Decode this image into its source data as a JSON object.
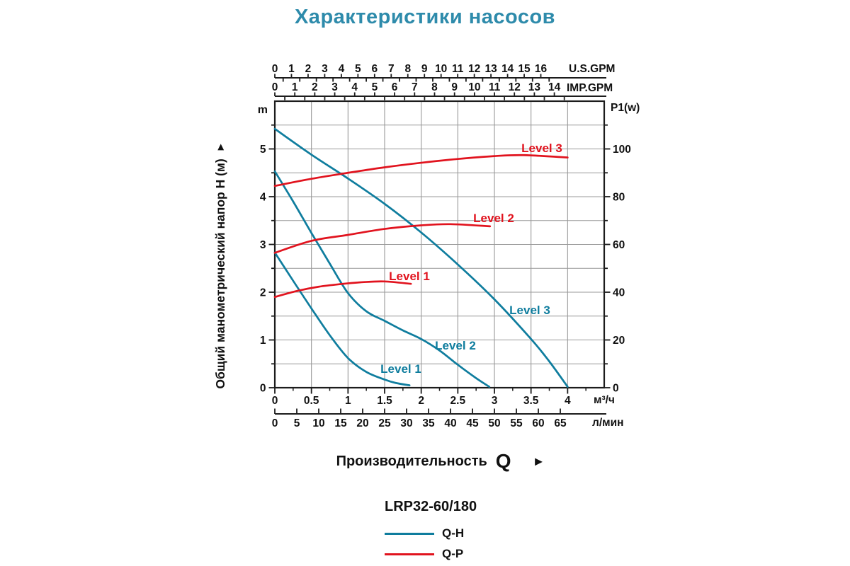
{
  "title": {
    "text": "Характеристики насосов",
    "color": "#2e8bab"
  },
  "x_axis_title": {
    "text": "Производительность",
    "symbol": "Q",
    "arrow": "►"
  },
  "y_axis_title": {
    "text": "Общий манометрический напор Н (м)",
    "arrow": "►"
  },
  "legend": {
    "model": "LRP32-60/180",
    "entries": [
      {
        "label": "Q-H",
        "color": "#0f7d9e"
      },
      {
        "label": "Q-P",
        "color": "#e1131e"
      }
    ]
  },
  "chart_data": {
    "type": "line",
    "grid": true,
    "x_axes": {
      "us_gpm": {
        "label": "U.S.GPM",
        "ticks": [
          "0",
          "1",
          "2",
          "3",
          "4",
          "5",
          "6",
          "7",
          "8",
          "9",
          "10",
          "11",
          "12",
          "13",
          "14",
          "15",
          "16"
        ]
      },
      "imp_gpm": {
        "label": "IMP.GPM",
        "ticks": [
          "0",
          "1",
          "2",
          "3",
          "4",
          "5",
          "6",
          "7",
          "8",
          "9",
          "10",
          "11",
          "12",
          "13",
          "14"
        ]
      },
      "m3h": {
        "label": "м³/ч",
        "ticks": [
          "0",
          "0.5",
          "1",
          "1.5",
          "2",
          "2.5",
          "3",
          "3.5",
          "4"
        ],
        "range": [
          0,
          4.5
        ]
      },
      "lmin": {
        "label": "л/мин",
        "ticks": [
          "0",
          "5",
          "10",
          "15",
          "20",
          "25",
          "30",
          "35",
          "40",
          "45",
          "50",
          "55",
          "60",
          "65"
        ]
      }
    },
    "y_axes": {
      "head": {
        "unit": "m",
        "ticks": [
          "0",
          "1",
          "2",
          "3",
          "4",
          "5"
        ],
        "range": [
          0,
          6
        ]
      },
      "power": {
        "unit": "P1(w)",
        "ticks": [
          "0",
          "20",
          "40",
          "60",
          "80",
          "100"
        ],
        "range": [
          0,
          120
        ]
      }
    },
    "series": [
      {
        "id": "qh-level1",
        "group": "Q-H",
        "label": "Level 1",
        "y_axis": "head",
        "color": "#0f7d9e",
        "points": [
          [
            0,
            2.83
          ],
          [
            0.25,
            2.24
          ],
          [
            0.5,
            1.66
          ],
          [
            0.75,
            1.1
          ],
          [
            1.0,
            0.62
          ],
          [
            1.25,
            0.33
          ],
          [
            1.5,
            0.17
          ],
          [
            1.65,
            0.1
          ],
          [
            1.84,
            0.05
          ]
        ]
      },
      {
        "id": "qh-level2",
        "group": "Q-H",
        "label": "Level 2",
        "y_axis": "head",
        "color": "#0f7d9e",
        "points": [
          [
            0,
            4.53
          ],
          [
            0.25,
            3.9
          ],
          [
            0.5,
            3.24
          ],
          [
            0.75,
            2.6
          ],
          [
            1.0,
            1.98
          ],
          [
            1.25,
            1.6
          ],
          [
            1.5,
            1.4
          ],
          [
            1.75,
            1.2
          ],
          [
            2.0,
            1.02
          ],
          [
            2.25,
            0.78
          ],
          [
            2.5,
            0.48
          ],
          [
            2.75,
            0.2
          ],
          [
            2.93,
            0.02
          ]
        ]
      },
      {
        "id": "qh-level3",
        "group": "Q-H",
        "label": "Level 3",
        "y_axis": "head",
        "color": "#0f7d9e",
        "points": [
          [
            0,
            5.42
          ],
          [
            0.5,
            4.88
          ],
          [
            1.0,
            4.38
          ],
          [
            1.5,
            3.85
          ],
          [
            2.0,
            3.25
          ],
          [
            2.5,
            2.58
          ],
          [
            3.0,
            1.85
          ],
          [
            3.5,
            1.02
          ],
          [
            3.75,
            0.55
          ],
          [
            4.0,
            0.02
          ]
        ]
      },
      {
        "id": "qp-level1",
        "group": "Q-P",
        "label": "Level 1",
        "y_axis": "power",
        "color": "#e1131e",
        "points": [
          [
            0,
            38.0
          ],
          [
            0.3,
            40.5
          ],
          [
            0.6,
            42.3
          ],
          [
            0.9,
            43.4
          ],
          [
            1.2,
            44.2
          ],
          [
            1.5,
            44.5
          ],
          [
            1.86,
            43.5
          ]
        ]
      },
      {
        "id": "qp-level2",
        "group": "Q-P",
        "label": "Level 2",
        "y_axis": "power",
        "color": "#e1131e",
        "points": [
          [
            0,
            56.5
          ],
          [
            0.5,
            61.5
          ],
          [
            1.0,
            64.0
          ],
          [
            1.5,
            66.5
          ],
          [
            2.0,
            68.0
          ],
          [
            2.4,
            68.5
          ],
          [
            2.94,
            67.6
          ]
        ]
      },
      {
        "id": "qp-level3",
        "group": "Q-P",
        "label": "Level 3",
        "y_axis": "power",
        "color": "#e1131e",
        "points": [
          [
            0,
            84.5
          ],
          [
            0.5,
            87.5
          ],
          [
            1.0,
            90.0
          ],
          [
            1.5,
            92.3
          ],
          [
            2.0,
            94.2
          ],
          [
            2.5,
            95.8
          ],
          [
            3.0,
            97.0
          ],
          [
            3.4,
            97.4
          ],
          [
            4.0,
            96.4
          ]
        ]
      }
    ]
  }
}
